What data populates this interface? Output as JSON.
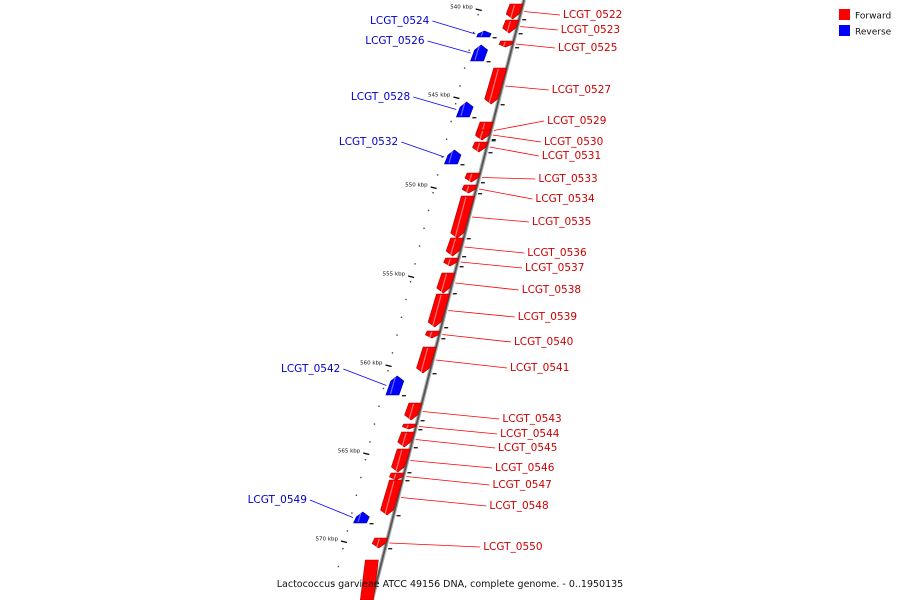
{
  "chart_data": {
    "type": "genome-map",
    "legend": [
      {
        "label": "Forward",
        "color": "#ff0000"
      },
      {
        "label": "Reverse",
        "color": "#0000ff"
      }
    ],
    "axis_ticks": [
      "540 kbp",
      "545 kbp",
      "550 kbp",
      "555 kbp",
      "560 kbp",
      "565 kbp",
      "570 kbp"
    ],
    "genes": [
      {
        "name": "LCGT_0522",
        "strand": "forward"
      },
      {
        "name": "LCGT_0523",
        "strand": "forward"
      },
      {
        "name": "LCGT_0524",
        "strand": "reverse"
      },
      {
        "name": "LCGT_0525",
        "strand": "forward"
      },
      {
        "name": "LCGT_0526",
        "strand": "reverse"
      },
      {
        "name": "LCGT_0527",
        "strand": "forward"
      },
      {
        "name": "LCGT_0528",
        "strand": "reverse"
      },
      {
        "name": "LCGT_0529",
        "strand": "forward"
      },
      {
        "name": "LCGT_0530",
        "strand": "forward"
      },
      {
        "name": "LCGT_0531",
        "strand": "forward"
      },
      {
        "name": "LCGT_0532",
        "strand": "reverse"
      },
      {
        "name": "LCGT_0533",
        "strand": "forward"
      },
      {
        "name": "LCGT_0534",
        "strand": "forward"
      },
      {
        "name": "LCGT_0535",
        "strand": "forward"
      },
      {
        "name": "LCGT_0536",
        "strand": "forward"
      },
      {
        "name": "LCGT_0537",
        "strand": "forward"
      },
      {
        "name": "LCGT_0538",
        "strand": "forward"
      },
      {
        "name": "LCGT_0539",
        "strand": "forward"
      },
      {
        "name": "LCGT_0540",
        "strand": "forward"
      },
      {
        "name": "LCGT_0541",
        "strand": "forward"
      },
      {
        "name": "LCGT_0542",
        "strand": "reverse"
      },
      {
        "name": "LCGT_0543",
        "strand": "forward"
      },
      {
        "name": "LCGT_0544",
        "strand": "forward"
      },
      {
        "name": "LCGT_0545",
        "strand": "forward"
      },
      {
        "name": "LCGT_0546",
        "strand": "forward"
      },
      {
        "name": "LCGT_0547",
        "strand": "forward"
      },
      {
        "name": "LCGT_0548",
        "strand": "forward"
      },
      {
        "name": "LCGT_0549",
        "strand": "reverse"
      },
      {
        "name": "LCGT_0550",
        "strand": "forward"
      }
    ],
    "footer": "Lactococcus garvieae ATCC 49156 DNA, complete genome. - 0..1950135"
  }
}
